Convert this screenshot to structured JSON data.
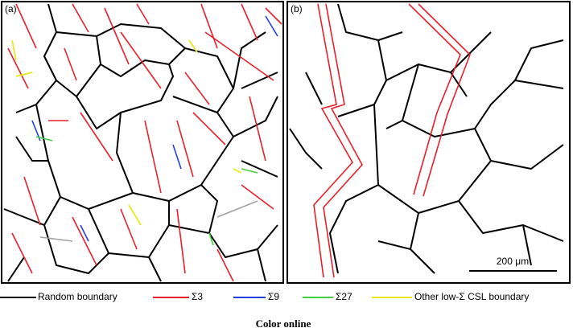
{
  "panels": [
    {
      "label": "(a)"
    },
    {
      "label": "(b)",
      "scale_bar": "200 μm"
    }
  ],
  "legend": [
    "Random boundary",
    "Σ3",
    "Σ9",
    "Σ27",
    "Other low-Σ CSL boundary"
  ],
  "caption": "Color online"
}
